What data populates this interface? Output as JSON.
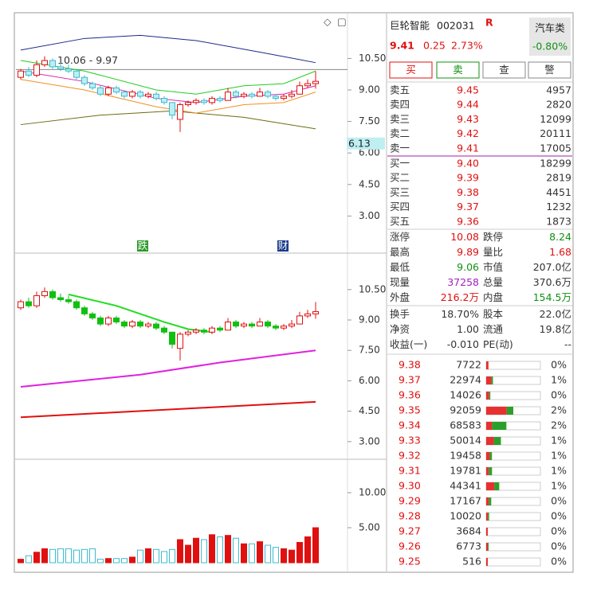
{
  "header": {
    "name": "巨轮智能",
    "code": "002031",
    "flag": "R",
    "price": "9.41",
    "change": "0.25",
    "pct": "2.73%",
    "sector": "汽车类",
    "sector_pct": "-0.80%"
  },
  "buttons": [
    "买",
    "卖",
    "查",
    "警"
  ],
  "asks": [
    [
      "卖五",
      "9.45",
      "4957"
    ],
    [
      "卖四",
      "9.44",
      "2820"
    ],
    [
      "卖三",
      "9.43",
      "12099"
    ],
    [
      "卖二",
      "9.42",
      "20111"
    ],
    [
      "卖一",
      "9.41",
      "17005"
    ]
  ],
  "bids": [
    [
      "买一",
      "9.40",
      "18299"
    ],
    [
      "买二",
      "9.39",
      "2819"
    ],
    [
      "买三",
      "9.38",
      "4451"
    ],
    [
      "买四",
      "9.37",
      "1232"
    ],
    [
      "买五",
      "9.36",
      "1873"
    ]
  ],
  "stats": [
    [
      "涨停",
      "10.08",
      "跌停",
      "8.24"
    ],
    [
      "最高",
      "9.89",
      "量比",
      "1.68"
    ],
    [
      "最低",
      "9.06",
      "市值",
      "207.0亿"
    ],
    [
      "现量",
      "37258",
      "总量",
      "370.6万"
    ],
    [
      "外盘",
      "216.2万",
      "内盘",
      "154.5万"
    ]
  ],
  "stats2": [
    [
      "换手",
      "18.70%",
      "股本",
      "22.0亿"
    ],
    [
      "净资",
      "1.00",
      "流通",
      "19.8亿"
    ],
    [
      "收益(一)",
      "-0.010",
      "PE(动)",
      "--"
    ]
  ],
  "ticks": [
    {
      "price": "9.38",
      "vol": 7722,
      "pct": "0%",
      "buy": 7722,
      "sell": 0
    },
    {
      "price": "9.37",
      "vol": 22974,
      "pct": "1%",
      "buy": 18000,
      "sell": 4974
    },
    {
      "price": "9.36",
      "vol": 14026,
      "pct": "0%",
      "buy": 10000,
      "sell": 4026
    },
    {
      "price": "9.35",
      "vol": 92059,
      "pct": "2%",
      "buy": 70000,
      "sell": 22059
    },
    {
      "price": "9.34",
      "vol": 68583,
      "pct": "2%",
      "buy": 20000,
      "sell": 48583
    },
    {
      "price": "9.33",
      "vol": 50014,
      "pct": "1%",
      "buy": 26000,
      "sell": 24014
    },
    {
      "price": "9.32",
      "vol": 19458,
      "pct": "1%",
      "buy": 12000,
      "sell": 7458
    },
    {
      "price": "9.31",
      "vol": 19781,
      "pct": "1%",
      "buy": 9000,
      "sell": 10781
    },
    {
      "price": "9.30",
      "vol": 44341,
      "pct": "1%",
      "buy": 28000,
      "sell": 16341
    },
    {
      "price": "9.29",
      "vol": 17167,
      "pct": "0%",
      "buy": 9000,
      "sell": 8167
    },
    {
      "price": "9.28",
      "vol": 10020,
      "pct": "0%",
      "buy": 6000,
      "sell": 4020
    },
    {
      "price": "9.27",
      "vol": 3684,
      "pct": "0%",
      "buy": 3684,
      "sell": 0
    },
    {
      "price": "9.26",
      "vol": 6773,
      "pct": "0%",
      "buy": 4000,
      "sell": 2773
    },
    {
      "price": "9.25",
      "vol": 516,
      "pct": "0%",
      "buy": 516,
      "sell": 0
    }
  ],
  "candles": [
    [
      9.6,
      9.9,
      10.0,
      9.5
    ],
    [
      9.9,
      9.7,
      10.1,
      9.6
    ],
    [
      9.7,
      10.2,
      10.4,
      9.6
    ],
    [
      10.2,
      10.4,
      10.6,
      10.1
    ],
    [
      10.4,
      10.1,
      10.5,
      10.0
    ],
    [
      10.1,
      10.0,
      10.3,
      9.9
    ],
    [
      10.0,
      9.9,
      10.2,
      9.8
    ],
    [
      9.9,
      9.6,
      10.0,
      9.5
    ],
    [
      9.6,
      9.3,
      9.7,
      9.2
    ],
    [
      9.3,
      9.1,
      9.4,
      9.0
    ],
    [
      9.1,
      8.8,
      9.2,
      8.7
    ],
    [
      8.8,
      9.1,
      9.2,
      8.7
    ],
    [
      9.1,
      8.9,
      9.2,
      8.8
    ],
    [
      8.9,
      8.7,
      9.0,
      8.6
    ],
    [
      8.7,
      8.9,
      9.0,
      8.6
    ],
    [
      8.9,
      8.7,
      9.0,
      8.6
    ],
    [
      8.7,
      8.8,
      8.9,
      8.6
    ],
    [
      8.8,
      8.6,
      8.9,
      8.5
    ],
    [
      8.6,
      8.4,
      8.7,
      8.3
    ],
    [
      8.4,
      7.8,
      8.4,
      7.6
    ],
    [
      7.6,
      8.3,
      8.4,
      7.0
    ],
    [
      8.3,
      8.4,
      8.5,
      8.2
    ],
    [
      8.4,
      8.5,
      8.6,
      8.3
    ],
    [
      8.5,
      8.4,
      8.6,
      8.3
    ],
    [
      8.4,
      8.6,
      8.7,
      8.3
    ],
    [
      8.6,
      8.5,
      8.7,
      8.4
    ],
    [
      8.5,
      8.9,
      9.1,
      8.5
    ],
    [
      8.9,
      8.7,
      9.0,
      8.6
    ],
    [
      8.7,
      8.8,
      8.9,
      8.6
    ],
    [
      8.8,
      8.7,
      8.9,
      8.6
    ],
    [
      8.7,
      8.9,
      9.1,
      8.7
    ],
    [
      8.9,
      8.7,
      9.0,
      8.6
    ],
    [
      8.7,
      8.6,
      8.8,
      8.5
    ],
    [
      8.6,
      8.7,
      8.8,
      8.5
    ],
    [
      8.7,
      8.8,
      9.0,
      8.6
    ],
    [
      8.8,
      9.2,
      9.4,
      8.8
    ],
    [
      9.2,
      9.3,
      9.5,
      9.1
    ],
    [
      9.3,
      9.41,
      9.89,
      9.06
    ]
  ],
  "volume": [
    0.5,
    1,
    1.5,
    2,
    1.9,
    2.0,
    2.0,
    1.8,
    1.9,
    2.0,
    0.5,
    0.6,
    0.6,
    0.6,
    0.8,
    1.8,
    2.0,
    1.9,
    1.6,
    1.9,
    3.3,
    2.5,
    3.5,
    3.3,
    4.0,
    3.7,
    3.9,
    3.5,
    2.7,
    2.7,
    3.0,
    2.5,
    2.2,
    2.0,
    1.8,
    2.9,
    3.7,
    5.0
  ],
  "chart_top": {
    "yticks": [
      {
        "value": 10.5,
        "label": "10.50"
      },
      {
        "value": 9,
        "label": "9.00"
      },
      {
        "value": 7.5,
        "label": "7.50"
      },
      {
        "value": 6,
        "label": "6.00"
      },
      {
        "value": 4.5,
        "label": "4.50"
      },
      {
        "value": 3,
        "label": "3.00"
      }
    ],
    "ref_line": {
      "value": 9.97,
      "label": "10.06 - 9.97"
    },
    "badge": {
      "value": 6.13,
      "label": "6.13"
    },
    "markers": [
      "跌",
      "财"
    ],
    "lines": [
      {
        "color": "#1a2a8a",
        "points": [
          [
            0,
            10.9
          ],
          [
            8,
            11.45
          ],
          [
            15,
            11.6
          ],
          [
            22,
            11.35
          ],
          [
            30,
            10.8
          ],
          [
            37,
            10.3
          ]
        ]
      },
      {
        "color": "#6b6b10",
        "points": [
          [
            0,
            7.35
          ],
          [
            10,
            7.8
          ],
          [
            19,
            8.0
          ],
          [
            28,
            7.7
          ],
          [
            37,
            7.15
          ]
        ]
      },
      {
        "color": "#22cc22",
        "points": [
          [
            0,
            10.4
          ],
          [
            8,
            9.9
          ],
          [
            17,
            9.0
          ],
          [
            22,
            8.8
          ],
          [
            28,
            9.2
          ],
          [
            33,
            9.3
          ],
          [
            37,
            9.9
          ]
        ]
      },
      {
        "color": "#dd22aa",
        "points": [
          [
            0,
            9.9
          ],
          [
            8,
            9.4
          ],
          [
            17,
            8.6
          ],
          [
            22,
            8.4
          ],
          [
            28,
            8.7
          ],
          [
            33,
            8.8
          ],
          [
            37,
            9.2
          ]
        ]
      },
      {
        "color": "#f09020",
        "points": [
          [
            0,
            9.5
          ],
          [
            8,
            9.0
          ],
          [
            17,
            8.2
          ],
          [
            22,
            7.9
          ],
          [
            28,
            8.3
          ],
          [
            33,
            8.4
          ],
          [
            37,
            8.9
          ]
        ]
      }
    ]
  },
  "chart_mid": {
    "yticks": [
      {
        "value": 10.5,
        "label": "10.50"
      },
      {
        "value": 9,
        "label": "9.00"
      },
      {
        "value": 7.5,
        "label": "7.50"
      },
      {
        "value": 6,
        "label": "6.00"
      },
      {
        "value": 4.5,
        "label": "4.50"
      },
      {
        "value": 3,
        "label": "3.00"
      }
    ],
    "lines": [
      {
        "color": "#22dd22",
        "points": [
          [
            6,
            10.26
          ],
          [
            12,
            9.7
          ],
          [
            18,
            8.9
          ],
          [
            21,
            8.55
          ],
          [
            24,
            8.4
          ]
        ]
      },
      {
        "color": "#e020e0",
        "points": [
          [
            0,
            5.7
          ],
          [
            15,
            6.3
          ],
          [
            25,
            6.9
          ],
          [
            37,
            7.5
          ]
        ]
      },
      {
        "color": "#e01010",
        "points": [
          [
            0,
            4.2
          ],
          [
            37,
            4.96
          ]
        ]
      }
    ]
  },
  "chart_vol": {
    "yticks": [
      {
        "value": 10,
        "label": "10.00"
      },
      {
        "value": 5,
        "label": "5.00"
      }
    ]
  }
}
